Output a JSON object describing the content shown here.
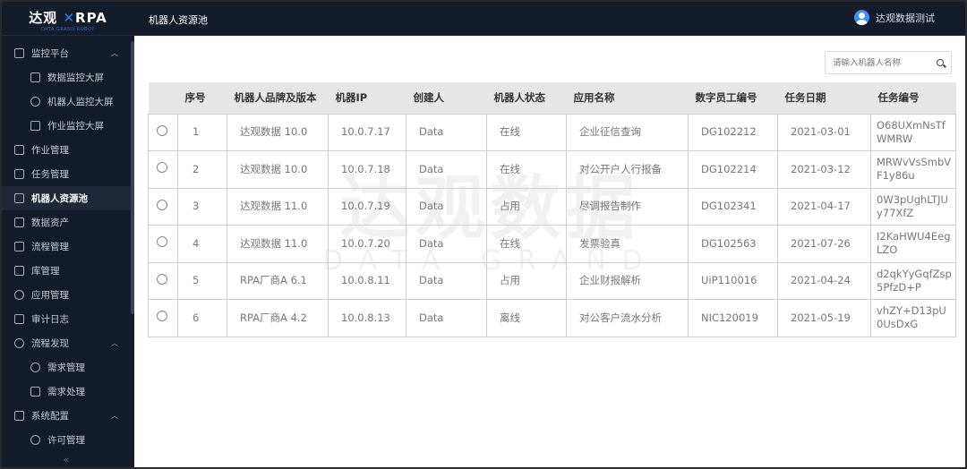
{
  "logo": {
    "name": "达观",
    "product": "RPA",
    "tagline": "DATA GRAND ROBOT"
  },
  "header": {
    "title": "机器人资源池",
    "user": "达观数据测试"
  },
  "sidebar": {
    "items": [
      {
        "label": "监控平台",
        "level": "top",
        "expanded": true,
        "icon": "monitor-icon"
      },
      {
        "label": "数据监控大屏",
        "level": "sub",
        "icon": "chart-screen-icon"
      },
      {
        "label": "机器人监控大屏",
        "level": "sub",
        "icon": "gauge-icon"
      },
      {
        "label": "作业监控大屏",
        "level": "sub",
        "icon": "list-screen-icon"
      },
      {
        "label": "作业管理",
        "level": "top",
        "icon": "job-icon"
      },
      {
        "label": "任务管理",
        "level": "top",
        "icon": "task-icon"
      },
      {
        "label": "机器人资源池",
        "level": "top",
        "active": true,
        "icon": "robot-icon"
      },
      {
        "label": "数据资产",
        "level": "top",
        "icon": "data-asset-icon"
      },
      {
        "label": "流程管理",
        "level": "top",
        "icon": "flow-icon"
      },
      {
        "label": "库管理",
        "level": "top",
        "icon": "library-icon"
      },
      {
        "label": "应用管理",
        "level": "top",
        "icon": "app-icon"
      },
      {
        "label": "审计日志",
        "level": "top",
        "icon": "audit-icon"
      },
      {
        "label": "流程发现",
        "level": "top",
        "expanded": true,
        "icon": "discover-icon"
      },
      {
        "label": "需求管理",
        "level": "sub",
        "icon": "gear-icon"
      },
      {
        "label": "需求处理",
        "level": "sub",
        "icon": "form-icon"
      },
      {
        "label": "系统配置",
        "level": "top",
        "expanded": true,
        "icon": "settings-icon"
      },
      {
        "label": "许可管理",
        "level": "sub",
        "icon": "key-icon"
      }
    ],
    "collapse": "«"
  },
  "search": {
    "placeholder": "请输入机器人名称",
    "value": ""
  },
  "table": {
    "headers": [
      "",
      "序号",
      "机器人品牌及版本",
      "机器IP",
      "创建人",
      "机器人状态",
      "应用名称",
      "数字员工编号",
      "任务日期",
      "任务编号"
    ],
    "rows": [
      [
        "1",
        "达观数据 10.0",
        "10.0.7.17",
        "Data",
        "在线",
        "企业征信查询",
        "DG102212",
        "2021-03-01",
        "O68UXmNsTfWMRW"
      ],
      [
        "2",
        "达观数据 10.0",
        "10.0.7.18",
        "Data",
        "在线",
        "对公开户人行报备",
        "DG102214",
        "2021-03-12",
        "MRWvVsSmbVF1y86u"
      ],
      [
        "3",
        "达观数据 11.0",
        "10.0.7.19",
        "Data",
        "占用",
        "尽调报告制作",
        "DG102341",
        "2021-04-17",
        "0W3pUghLTJUy77XfZ"
      ],
      [
        "4",
        "达观数据 11.0",
        "10.0.7.20",
        "Data",
        "在线",
        "发票验真",
        "DG102563",
        "2021-07-26",
        "I2KaHWU4EegLZO"
      ],
      [
        "5",
        "RPA厂商A 6.1",
        "10.0.8.11",
        "Data",
        "占用",
        "企业财报解析",
        "UiP110016",
        "2021-04-24",
        "d2qkYyGqfZsp5PfzD+P"
      ],
      [
        "6",
        "RPA厂商A 4.2",
        "10.0.8.13",
        "Data",
        "离线",
        "对公客户流水分析",
        "NIC120019",
        "2021-05-19",
        "vhZY+D13pU0UsDxG"
      ]
    ]
  },
  "watermark": {
    "text": "达观数据",
    "sub": "DATA GRAND"
  },
  "colors": {
    "topbar": "#141b2a",
    "sidebar": "#131a29",
    "accent": "#2f7fe8"
  }
}
